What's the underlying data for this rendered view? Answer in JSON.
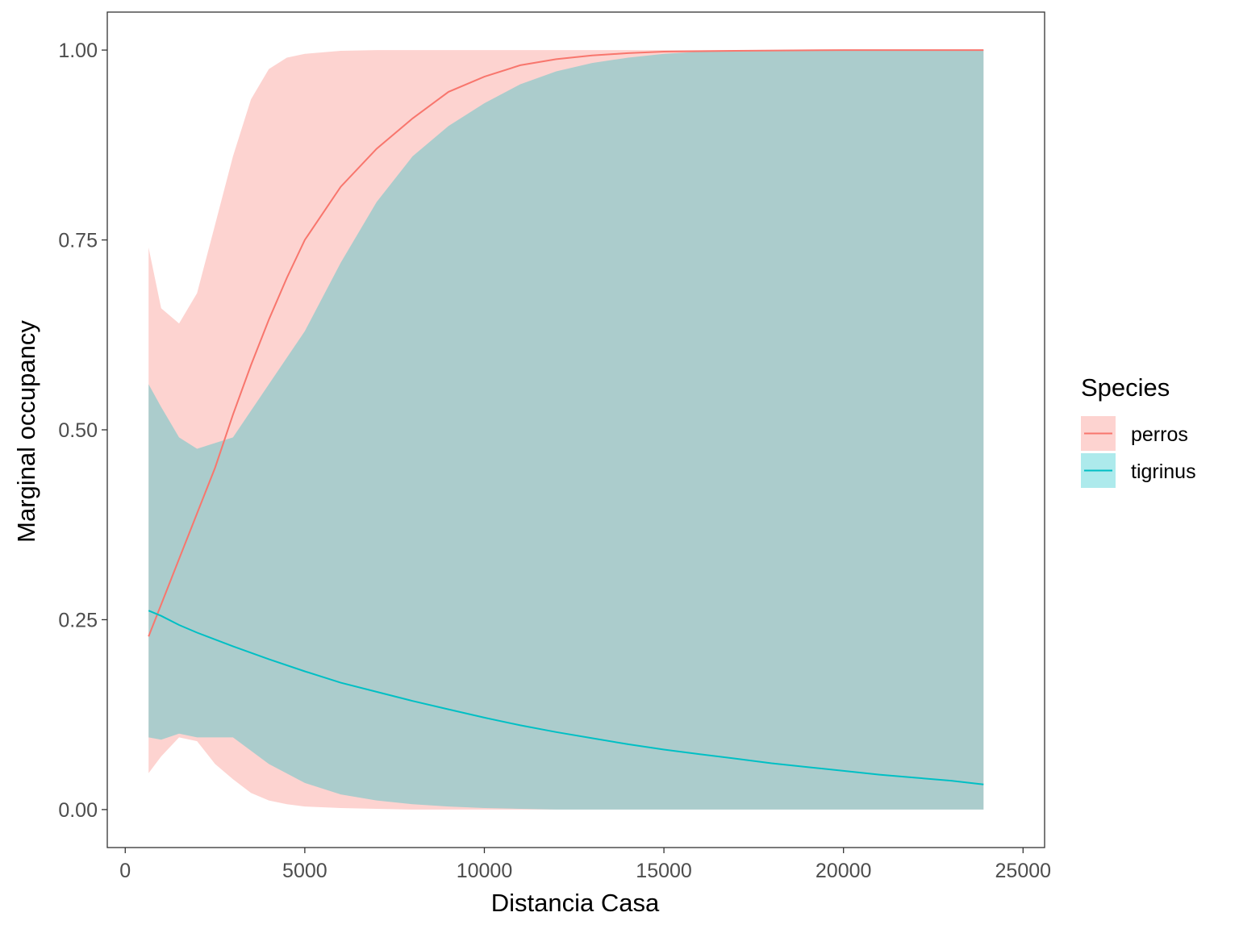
{
  "chart_data": {
    "type": "area",
    "title": "",
    "xlabel": "Distancia Casa",
    "ylabel": "Marginal occupancy",
    "xlim": [
      -500,
      25600
    ],
    "ylim": [
      -0.05,
      1.05
    ],
    "x_ticks": [
      0,
      5000,
      10000,
      15000,
      20000,
      25000
    ],
    "x_tick_labels": [
      "0",
      "5000",
      "10000",
      "15000",
      "20000",
      "25000"
    ],
    "y_ticks": [
      0,
      0.25,
      0.5,
      0.75,
      1.0
    ],
    "y_tick_labels": [
      "0.00",
      "0.25",
      "0.50",
      "0.75",
      "1.00"
    ],
    "grid": false,
    "legend": {
      "title": "Species",
      "position": "right"
    },
    "series": [
      {
        "name": "perros",
        "color": "#F8766D",
        "fill": "#F8766D",
        "fill_opacity": 0.32,
        "x": [
          650,
          1000,
          1500,
          2000,
          2500,
          3000,
          3500,
          4000,
          4500,
          5000,
          6000,
          7000,
          8000,
          9000,
          10000,
          11000,
          12000,
          13000,
          14000,
          15000,
          17000,
          20000,
          23900
        ],
        "y": [
          0.228,
          0.27,
          0.33,
          0.39,
          0.45,
          0.52,
          0.585,
          0.645,
          0.7,
          0.75,
          0.82,
          0.87,
          0.91,
          0.945,
          0.965,
          0.98,
          0.988,
          0.993,
          0.996,
          0.998,
          0.999,
          1.0,
          1.0
        ],
        "lower": [
          0.048,
          0.07,
          0.095,
          0.09,
          0.06,
          0.04,
          0.022,
          0.012,
          0.007,
          0.004,
          0.002,
          0.001,
          0.0,
          0.0,
          0.0,
          0.0,
          0.0,
          0.0,
          0.0,
          0.0,
          0.0,
          0.0,
          0.0
        ],
        "upper": [
          0.74,
          0.66,
          0.64,
          0.68,
          0.77,
          0.86,
          0.935,
          0.975,
          0.99,
          0.995,
          0.999,
          1.0,
          1.0,
          1.0,
          1.0,
          1.0,
          1.0,
          1.0,
          1.0,
          1.0,
          1.0,
          1.0,
          1.0
        ]
      },
      {
        "name": "tigrinus",
        "color": "#00BFC4",
        "fill": "#00BFC4",
        "fill_opacity": 0.32,
        "x": [
          650,
          1000,
          1500,
          2000,
          3000,
          4000,
          5000,
          6000,
          7000,
          8000,
          9000,
          10000,
          11000,
          12000,
          13000,
          14000,
          15000,
          16000,
          17000,
          18000,
          19000,
          20000,
          21000,
          22000,
          23000,
          23900
        ],
        "y": [
          0.262,
          0.255,
          0.243,
          0.233,
          0.215,
          0.198,
          0.182,
          0.167,
          0.155,
          0.143,
          0.132,
          0.121,
          0.111,
          0.102,
          0.094,
          0.086,
          0.079,
          0.073,
          0.067,
          0.061,
          0.056,
          0.051,
          0.046,
          0.042,
          0.038,
          0.033
        ],
        "lower": [
          0.095,
          0.092,
          0.1,
          0.095,
          0.095,
          0.06,
          0.035,
          0.02,
          0.012,
          0.007,
          0.004,
          0.002,
          0.001,
          0.0,
          0.0,
          0.0,
          0.0,
          0.0,
          0.0,
          0.0,
          0.0,
          0.0,
          0.0,
          0.0,
          0.0,
          0.0
        ],
        "upper": [
          0.56,
          0.53,
          0.49,
          0.475,
          0.49,
          0.56,
          0.63,
          0.72,
          0.8,
          0.86,
          0.9,
          0.93,
          0.955,
          0.972,
          0.983,
          0.99,
          0.995,
          0.998,
          0.999,
          1.0,
          1.0,
          1.0,
          1.0,
          1.0,
          1.0,
          1.0
        ]
      }
    ]
  }
}
